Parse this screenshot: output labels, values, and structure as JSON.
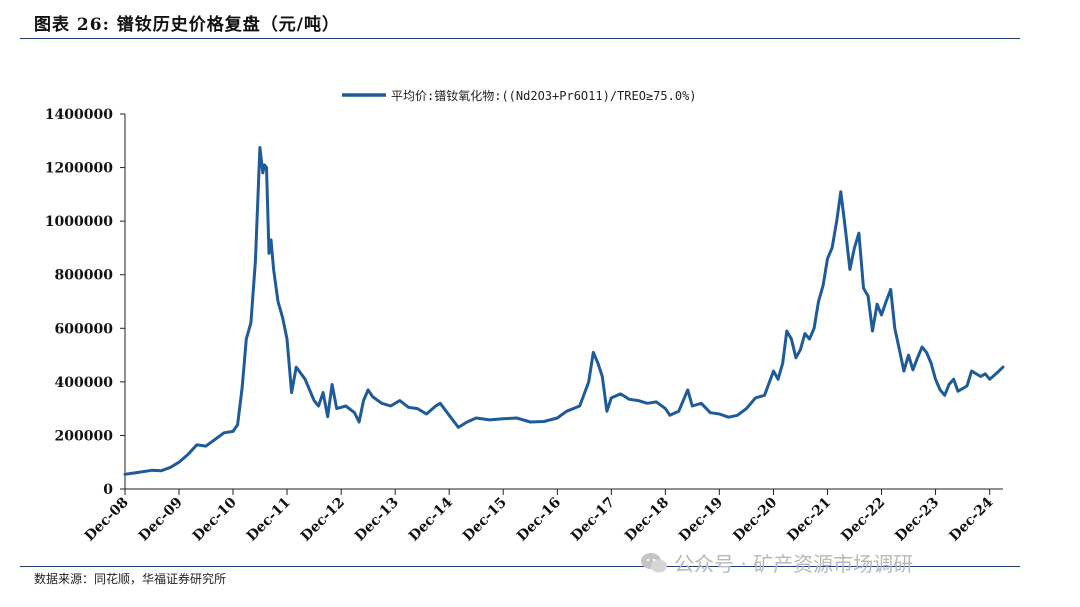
{
  "header": {
    "title": "图表 26:  镨钕历史价格复盘（元/吨）"
  },
  "footer": {
    "source": "数据来源：同花顺，华福证券研究所",
    "watermark": "公众号 · 矿产资源市场调研"
  },
  "chart_data": {
    "type": "line",
    "title": "",
    "xlabel": "",
    "ylabel": "",
    "ylim": [
      0,
      1400000
    ],
    "y_ticks": [
      0,
      200000,
      400000,
      600000,
      800000,
      1000000,
      1200000,
      1400000
    ],
    "x_ticks": [
      "Dec-08",
      "Dec-09",
      "Dec-10",
      "Dec-11",
      "Dec-12",
      "Dec-13",
      "Dec-14",
      "Dec-15",
      "Dec-16",
      "Dec-17",
      "Dec-18",
      "Dec-19",
      "Dec-20",
      "Dec-21",
      "Dec-22",
      "Dec-23",
      "Dec-24"
    ],
    "x_range": [
      "2008-12-01",
      "2025-03-01"
    ],
    "legend": {
      "position": "top-center",
      "color": "#1f5a99"
    },
    "series": [
      {
        "name": "平均价:镨钕氧化物:((Nd2O3+Pr6O11)/TREO≥75.0%)",
        "color": "#1f5a99",
        "points": [
          [
            "2008-12-01",
            55000
          ],
          [
            "2009-03-01",
            62000
          ],
          [
            "2009-06-01",
            70000
          ],
          [
            "2009-08-01",
            68000
          ],
          [
            "2009-10-01",
            80000
          ],
          [
            "2009-12-01",
            100000
          ],
          [
            "2010-02-01",
            130000
          ],
          [
            "2010-04-01",
            165000
          ],
          [
            "2010-06-01",
            160000
          ],
          [
            "2010-08-01",
            185000
          ],
          [
            "2010-10-01",
            210000
          ],
          [
            "2010-12-01",
            215000
          ],
          [
            "2011-01-01",
            240000
          ],
          [
            "2011-02-01",
            380000
          ],
          [
            "2011-03-01",
            560000
          ],
          [
            "2011-04-01",
            620000
          ],
          [
            "2011-05-01",
            850000
          ],
          [
            "2011-06-01",
            1275000
          ],
          [
            "2011-06-20",
            1180000
          ],
          [
            "2011-07-01",
            1210000
          ],
          [
            "2011-07-15",
            1200000
          ],
          [
            "2011-08-01",
            880000
          ],
          [
            "2011-08-15",
            930000
          ],
          [
            "2011-09-01",
            820000
          ],
          [
            "2011-10-01",
            700000
          ],
          [
            "2011-11-01",
            640000
          ],
          [
            "2011-12-01",
            560000
          ],
          [
            "2012-01-01",
            360000
          ],
          [
            "2012-02-01",
            455000
          ],
          [
            "2012-04-01",
            410000
          ],
          [
            "2012-06-01",
            330000
          ],
          [
            "2012-07-01",
            310000
          ],
          [
            "2012-08-01",
            360000
          ],
          [
            "2012-09-01",
            270000
          ],
          [
            "2012-10-01",
            390000
          ],
          [
            "2012-11-01",
            300000
          ],
          [
            "2013-01-01",
            310000
          ],
          [
            "2013-03-01",
            285000
          ],
          [
            "2013-04-01",
            250000
          ],
          [
            "2013-05-01",
            330000
          ],
          [
            "2013-06-01",
            370000
          ],
          [
            "2013-07-01",
            345000
          ],
          [
            "2013-09-01",
            320000
          ],
          [
            "2013-11-01",
            310000
          ],
          [
            "2014-01-01",
            330000
          ],
          [
            "2014-03-01",
            305000
          ],
          [
            "2014-05-01",
            300000
          ],
          [
            "2014-07-01",
            280000
          ],
          [
            "2014-09-01",
            310000
          ],
          [
            "2014-10-01",
            320000
          ],
          [
            "2014-12-01",
            275000
          ],
          [
            "2015-02-01",
            230000
          ],
          [
            "2015-04-01",
            250000
          ],
          [
            "2015-06-01",
            265000
          ],
          [
            "2015-09-01",
            258000
          ],
          [
            "2015-12-01",
            262000
          ],
          [
            "2016-03-01",
            265000
          ],
          [
            "2016-06-01",
            250000
          ],
          [
            "2016-09-01",
            252000
          ],
          [
            "2016-12-01",
            265000
          ],
          [
            "2017-02-01",
            290000
          ],
          [
            "2017-05-01",
            310000
          ],
          [
            "2017-07-01",
            400000
          ],
          [
            "2017-08-01",
            510000
          ],
          [
            "2017-09-01",
            470000
          ],
          [
            "2017-10-01",
            420000
          ],
          [
            "2017-11-01",
            290000
          ],
          [
            "2017-12-01",
            340000
          ],
          [
            "2018-02-01",
            355000
          ],
          [
            "2018-04-01",
            335000
          ],
          [
            "2018-06-01",
            330000
          ],
          [
            "2018-08-01",
            320000
          ],
          [
            "2018-10-01",
            325000
          ],
          [
            "2018-12-01",
            300000
          ],
          [
            "2019-01-01",
            275000
          ],
          [
            "2019-03-01",
            290000
          ],
          [
            "2019-05-01",
            370000
          ],
          [
            "2019-06-01",
            310000
          ],
          [
            "2019-08-01",
            320000
          ],
          [
            "2019-10-01",
            285000
          ],
          [
            "2019-12-01",
            280000
          ],
          [
            "2020-02-01",
            268000
          ],
          [
            "2020-04-01",
            275000
          ],
          [
            "2020-06-01",
            300000
          ],
          [
            "2020-08-01",
            340000
          ],
          [
            "2020-10-01",
            350000
          ],
          [
            "2020-12-01",
            440000
          ],
          [
            "2021-01-01",
            410000
          ],
          [
            "2021-02-01",
            470000
          ],
          [
            "2021-03-01",
            590000
          ],
          [
            "2021-04-01",
            560000
          ],
          [
            "2021-05-01",
            490000
          ],
          [
            "2021-06-01",
            520000
          ],
          [
            "2021-07-01",
            580000
          ],
          [
            "2021-08-01",
            560000
          ],
          [
            "2021-09-01",
            600000
          ],
          [
            "2021-10-01",
            700000
          ],
          [
            "2021-11-01",
            760000
          ],
          [
            "2021-12-01",
            860000
          ],
          [
            "2022-01-01",
            900000
          ],
          [
            "2022-02-01",
            1000000
          ],
          [
            "2022-03-01",
            1110000
          ],
          [
            "2022-04-01",
            970000
          ],
          [
            "2022-05-01",
            820000
          ],
          [
            "2022-06-01",
            900000
          ],
          [
            "2022-07-01",
            955000
          ],
          [
            "2022-08-01",
            750000
          ],
          [
            "2022-09-01",
            720000
          ],
          [
            "2022-10-01",
            590000
          ],
          [
            "2022-11-01",
            690000
          ],
          [
            "2022-12-01",
            650000
          ],
          [
            "2023-01-01",
            700000
          ],
          [
            "2023-02-01",
            745000
          ],
          [
            "2023-03-01",
            600000
          ],
          [
            "2023-04-01",
            520000
          ],
          [
            "2023-05-01",
            440000
          ],
          [
            "2023-06-01",
            500000
          ],
          [
            "2023-07-01",
            445000
          ],
          [
            "2023-08-01",
            490000
          ],
          [
            "2023-09-01",
            530000
          ],
          [
            "2023-10-01",
            510000
          ],
          [
            "2023-11-01",
            470000
          ],
          [
            "2023-12-01",
            410000
          ],
          [
            "2024-01-01",
            370000
          ],
          [
            "2024-02-01",
            350000
          ],
          [
            "2024-03-01",
            390000
          ],
          [
            "2024-04-01",
            410000
          ],
          [
            "2024-05-01",
            365000
          ],
          [
            "2024-06-01",
            375000
          ],
          [
            "2024-07-01",
            385000
          ],
          [
            "2024-08-01",
            440000
          ],
          [
            "2024-09-01",
            430000
          ],
          [
            "2024-10-01",
            420000
          ],
          [
            "2024-11-01",
            430000
          ],
          [
            "2024-12-01",
            410000
          ],
          [
            "2025-01-01",
            425000
          ],
          [
            "2025-02-01",
            440000
          ],
          [
            "2025-03-01",
            455000
          ]
        ]
      }
    ]
  }
}
